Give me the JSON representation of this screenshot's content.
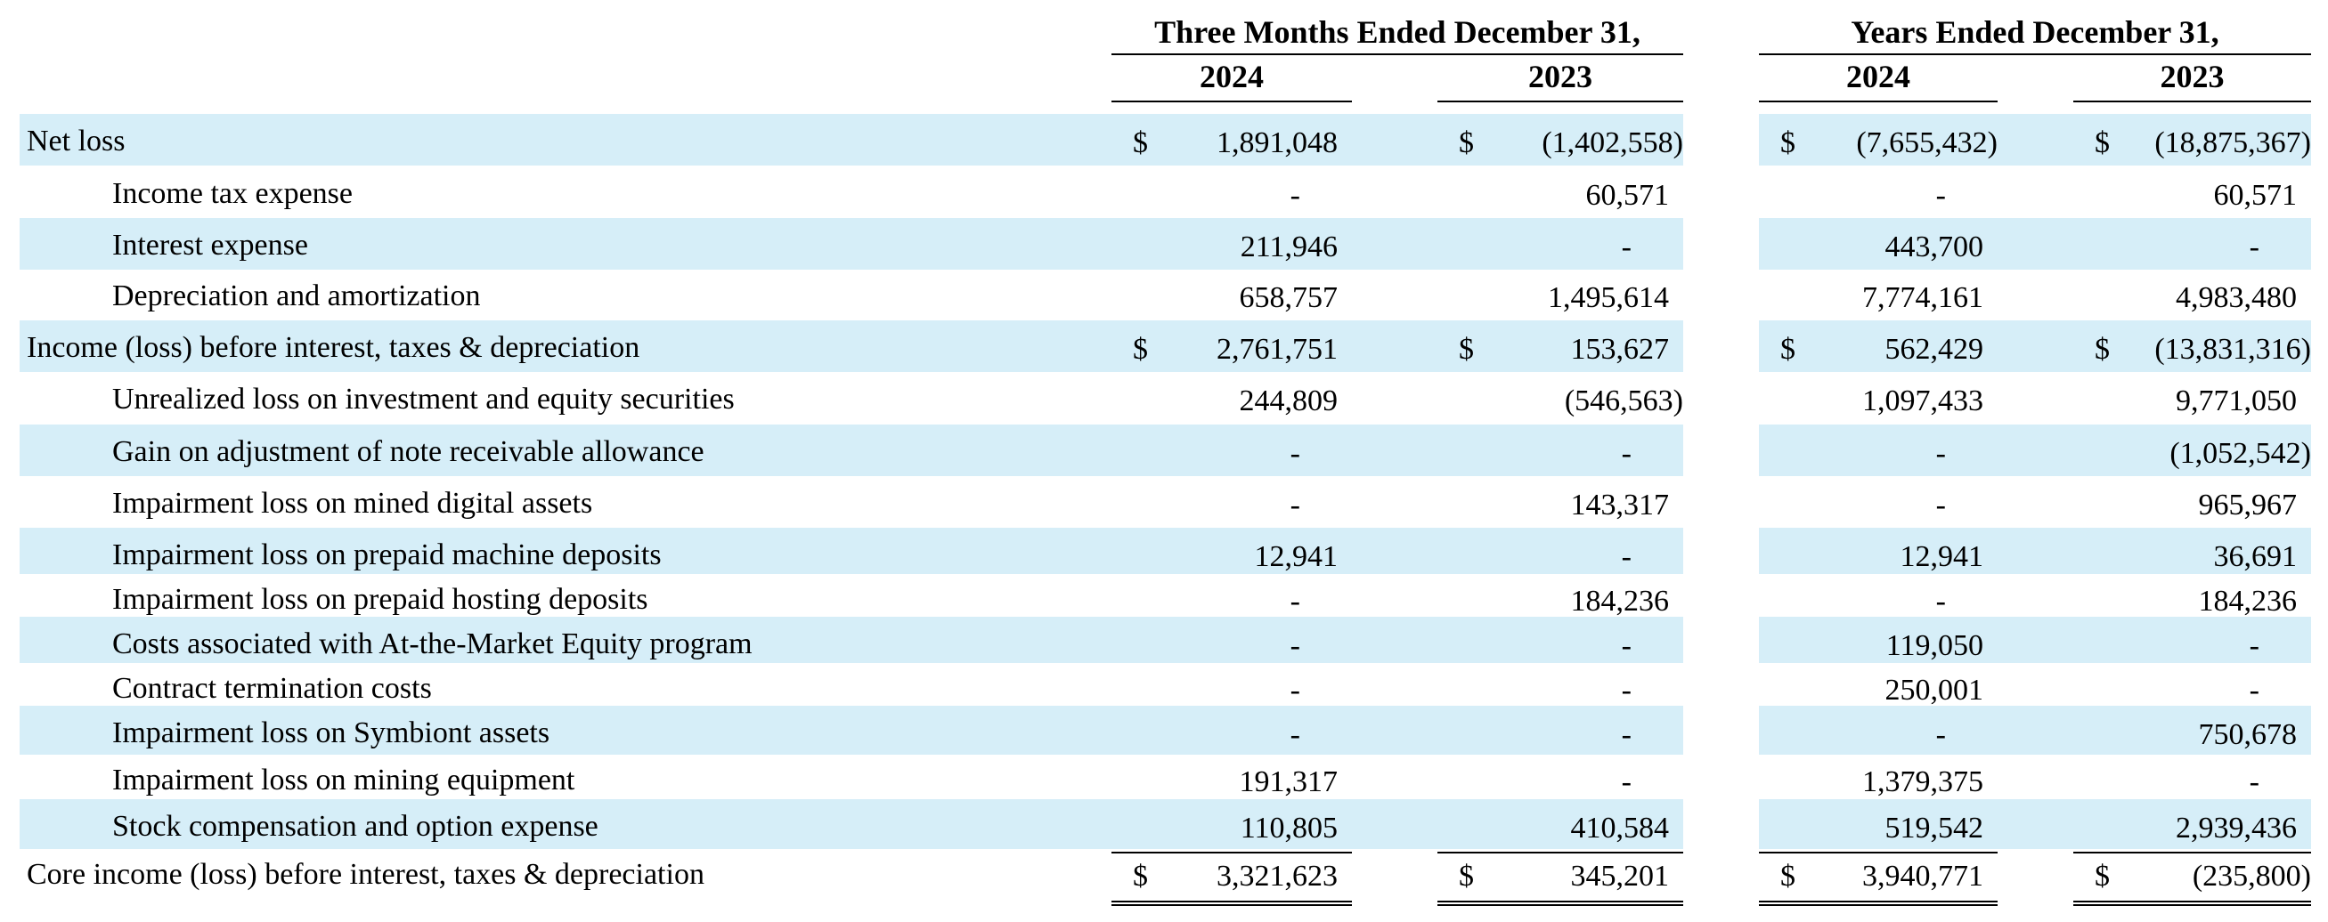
{
  "header": {
    "three_months": "Three Months Ended December 31,",
    "years": "Years Ended December 31,",
    "columns": [
      "2024",
      "2023",
      "2024",
      "2023"
    ]
  },
  "currency_symbol": "$",
  "colors": {
    "band": "#d6eef8"
  },
  "rows": [
    {
      "label": "Net loss",
      "indent": false,
      "shaded": true,
      "dollar": true,
      "values": [
        "1,891,048",
        "(1,402,558)",
        "(7,655,432)",
        "(18,875,367)"
      ]
    },
    {
      "label": "Income tax expense",
      "indent": true,
      "shaded": false,
      "dollar": false,
      "values": [
        "-",
        "60,571",
        "-",
        "60,571"
      ]
    },
    {
      "label": "Interest expense",
      "indent": true,
      "shaded": true,
      "dollar": false,
      "values": [
        "211,946",
        "-",
        "443,700",
        "-"
      ]
    },
    {
      "label": "Depreciation and amortization",
      "indent": true,
      "shaded": false,
      "dollar": false,
      "underline": "single",
      "values": [
        "658,757",
        "1,495,614",
        "7,774,161",
        "4,983,480"
      ]
    },
    {
      "label": "Income (loss) before interest, taxes & depreciation",
      "indent": false,
      "shaded": true,
      "dollar": true,
      "values": [
        "2,761,751",
        "153,627",
        "562,429",
        "(13,831,316)"
      ]
    },
    {
      "label": "Unrealized loss on investment and equity securities",
      "indent": true,
      "shaded": false,
      "dollar": false,
      "values": [
        "244,809",
        "(546,563)",
        "1,097,433",
        "9,771,050"
      ]
    },
    {
      "label": "Gain on adjustment of note receivable allowance",
      "indent": true,
      "shaded": true,
      "dollar": false,
      "values": [
        "-",
        "-",
        "-",
        "(1,052,542)"
      ]
    },
    {
      "label": "Impairment loss on mined digital assets",
      "indent": true,
      "shaded": false,
      "dollar": false,
      "values": [
        "-",
        "143,317",
        "-",
        "965,967"
      ]
    },
    {
      "label": "Impairment loss on prepaid machine deposits",
      "indent": true,
      "shaded": true,
      "dollar": false,
      "values": [
        "12,941",
        "-",
        "12,941",
        "36,691"
      ]
    },
    {
      "label": "Impairment loss on prepaid hosting deposits",
      "indent": true,
      "shaded": false,
      "dollar": false,
      "values": [
        "-",
        "184,236",
        "-",
        "184,236"
      ]
    },
    {
      "label": "Costs associated with At-the-Market Equity program",
      "indent": true,
      "shaded": true,
      "dollar": false,
      "values": [
        "-",
        "-",
        "119,050",
        "-"
      ]
    },
    {
      "label": "Contract termination costs",
      "indent": true,
      "shaded": false,
      "dollar": false,
      "values": [
        "-",
        "-",
        "250,001",
        "-"
      ]
    },
    {
      "label": "Impairment loss on Symbiont assets",
      "indent": true,
      "shaded": true,
      "dollar": false,
      "values": [
        "-",
        "-",
        "-",
        "750,678"
      ]
    },
    {
      "label": "Impairment loss on mining equipment",
      "indent": true,
      "shaded": false,
      "dollar": false,
      "values": [
        "191,317",
        "-",
        "1,379,375",
        "-"
      ]
    },
    {
      "label": "Stock compensation and option expense",
      "indent": true,
      "shaded": true,
      "dollar": false,
      "underline": "single",
      "values": [
        "110,805",
        "410,584",
        "519,542",
        "2,939,436"
      ]
    },
    {
      "label": "Core income (loss) before interest, taxes & depreciation",
      "indent": false,
      "shaded": false,
      "dollar": true,
      "underline": "double",
      "values": [
        "3,321,623",
        "345,201",
        "3,940,771",
        "(235,800)"
      ]
    }
  ]
}
